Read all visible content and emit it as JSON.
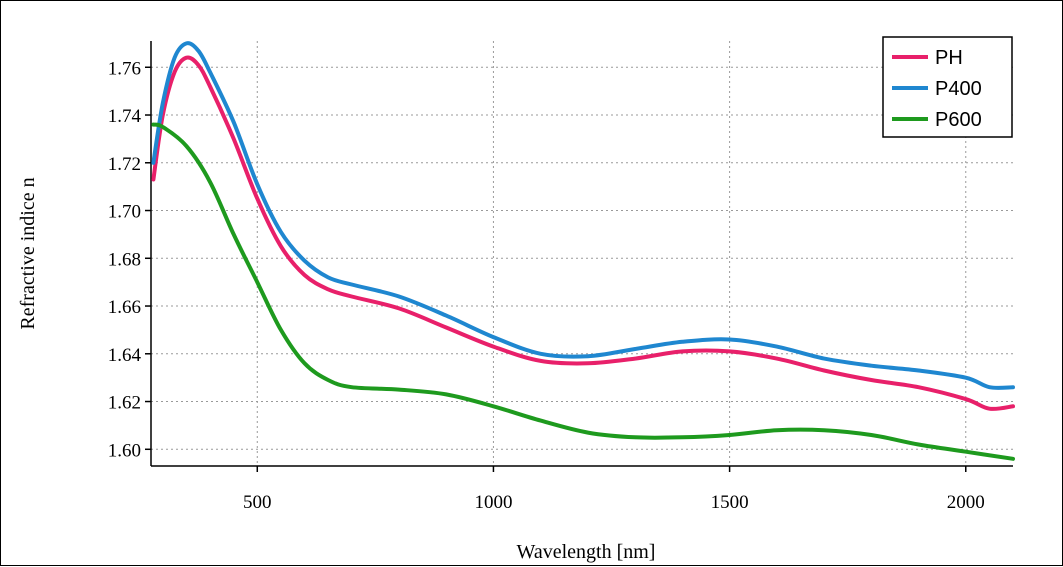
{
  "chart_data": {
    "type": "line",
    "title": "",
    "xlabel": "Wavelength [nm]",
    "ylabel": "Refractive indice n",
    "xlim": [
      275,
      2100
    ],
    "ylim": [
      1.593,
      1.771
    ],
    "x_ticks": [
      500,
      1000,
      1500,
      2000
    ],
    "y_ticks": [
      1.6,
      1.62,
      1.64,
      1.66,
      1.68,
      1.7,
      1.72,
      1.74,
      1.76
    ],
    "y_tick_labels": [
      "1.60",
      "1.62",
      "1.64",
      "1.66",
      "1.68",
      "1.70",
      "1.72",
      "1.74",
      "1.76"
    ],
    "grid": true,
    "legend_position": "top-right",
    "series": [
      {
        "name": "PH",
        "color": "#e8206a",
        "points": [
          [
            280,
            1.713
          ],
          [
            300,
            1.74
          ],
          [
            325,
            1.758
          ],
          [
            350,
            1.764
          ],
          [
            375,
            1.761
          ],
          [
            400,
            1.752
          ],
          [
            450,
            1.73
          ],
          [
            500,
            1.705
          ],
          [
            550,
            1.685
          ],
          [
            600,
            1.673
          ],
          [
            650,
            1.667
          ],
          [
            700,
            1.664
          ],
          [
            800,
            1.659
          ],
          [
            900,
            1.651
          ],
          [
            1000,
            1.643
          ],
          [
            1100,
            1.637
          ],
          [
            1200,
            1.636
          ],
          [
            1300,
            1.638
          ],
          [
            1400,
            1.641
          ],
          [
            1500,
            1.641
          ],
          [
            1600,
            1.638
          ],
          [
            1700,
            1.633
          ],
          [
            1800,
            1.629
          ],
          [
            1900,
            1.626
          ],
          [
            2000,
            1.621
          ],
          [
            2050,
            1.617
          ],
          [
            2100,
            1.618
          ]
        ]
      },
      {
        "name": "P400",
        "color": "#1f87d0",
        "points": [
          [
            280,
            1.72
          ],
          [
            300,
            1.745
          ],
          [
            325,
            1.764
          ],
          [
            350,
            1.77
          ],
          [
            375,
            1.767
          ],
          [
            400,
            1.758
          ],
          [
            450,
            1.737
          ],
          [
            500,
            1.711
          ],
          [
            550,
            1.691
          ],
          [
            600,
            1.679
          ],
          [
            650,
            1.672
          ],
          [
            700,
            1.669
          ],
          [
            800,
            1.664
          ],
          [
            900,
            1.656
          ],
          [
            1000,
            1.647
          ],
          [
            1100,
            1.64
          ],
          [
            1200,
            1.639
          ],
          [
            1300,
            1.642
          ],
          [
            1400,
            1.645
          ],
          [
            1500,
            1.646
          ],
          [
            1600,
            1.643
          ],
          [
            1700,
            1.638
          ],
          [
            1800,
            1.635
          ],
          [
            1900,
            1.633
          ],
          [
            2000,
            1.63
          ],
          [
            2050,
            1.626
          ],
          [
            2100,
            1.626
          ]
        ]
      },
      {
        "name": "P600",
        "color": "#1e9a1e",
        "points": [
          [
            280,
            1.736
          ],
          [
            300,
            1.735
          ],
          [
            350,
            1.727
          ],
          [
            400,
            1.712
          ],
          [
            450,
            1.69
          ],
          [
            500,
            1.67
          ],
          [
            550,
            1.65
          ],
          [
            600,
            1.636
          ],
          [
            650,
            1.629
          ],
          [
            700,
            1.626
          ],
          [
            800,
            1.625
          ],
          [
            900,
            1.623
          ],
          [
            1000,
            1.618
          ],
          [
            1100,
            1.612
          ],
          [
            1200,
            1.607
          ],
          [
            1300,
            1.605
          ],
          [
            1400,
            1.605
          ],
          [
            1500,
            1.606
          ],
          [
            1600,
            1.608
          ],
          [
            1700,
            1.608
          ],
          [
            1800,
            1.606
          ],
          [
            1900,
            1.602
          ],
          [
            2000,
            1.599
          ],
          [
            2100,
            1.596
          ]
        ]
      }
    ]
  }
}
